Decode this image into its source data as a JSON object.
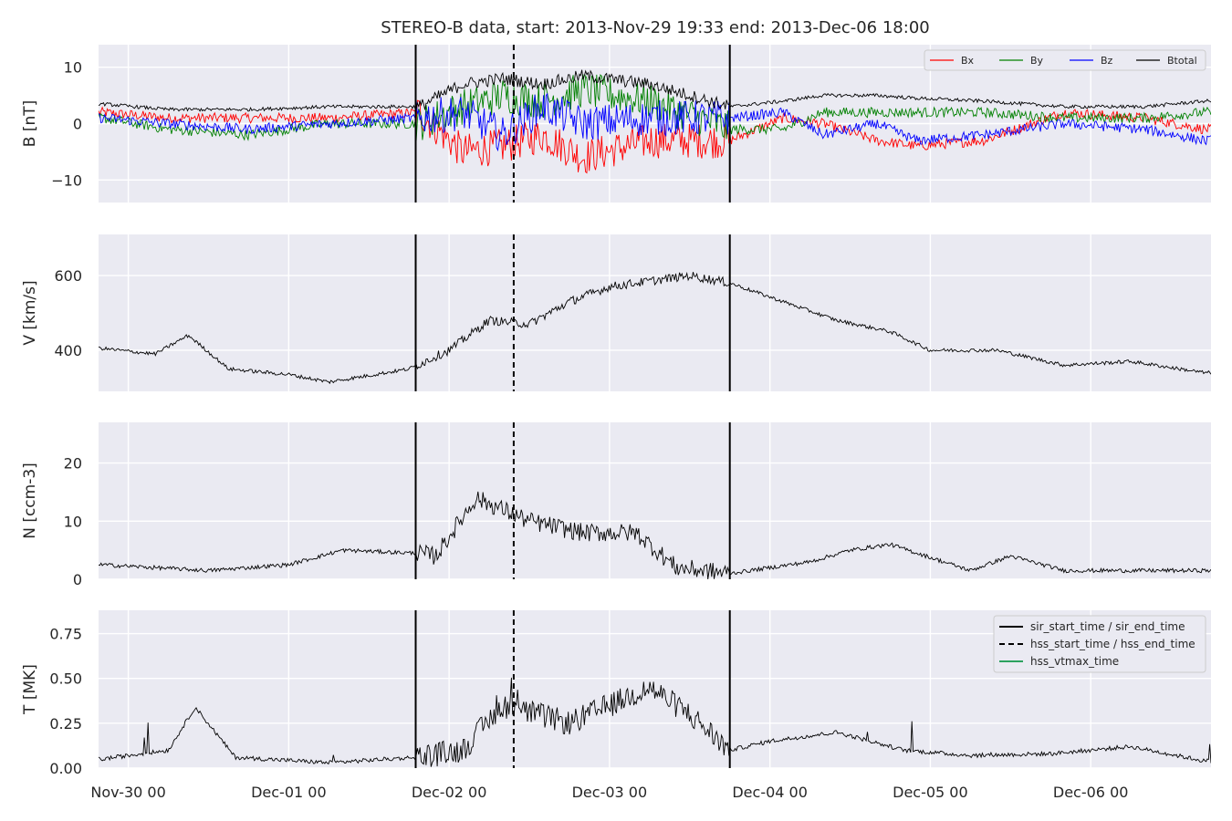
{
  "chart_data": {
    "type": "line",
    "title": "STEREO-B data, start: 2013-Nov-29 19:33  end: 2013-Dec-06 18:00",
    "x_range": [
      "2013-11-29 19:33",
      "2013-12-06 18:00"
    ],
    "x_ticks": [
      "Nov-30 00",
      "Dec-01 00",
      "Dec-02 00",
      "Dec-03 00",
      "Dec-04 00",
      "Dec-05 00",
      "Dec-06 00"
    ],
    "grid": true,
    "event_lines": [
      {
        "label": "sir_start_time / sir_end_time",
        "style": "solid",
        "color": "#000000",
        "times": [
          "2013-12-01 19:00",
          "2013-12-03 18:00"
        ]
      },
      {
        "label": "hss_start_time / hss_end_time",
        "style": "dashed",
        "color": "#000000",
        "times": [
          "2013-12-02 09:40"
        ]
      },
      {
        "label": "hss_vtmax_time",
        "style": "solid",
        "color": "#2ca25f",
        "times": []
      }
    ],
    "panels": [
      {
        "id": "B",
        "ylabel": "B [nT]",
        "ylim": [
          -14,
          14
        ],
        "yticks": [
          10,
          0,
          -10
        ],
        "legend": "top-right",
        "series": [
          {
            "name": "Bx",
            "color": "#ff0000",
            "x": [
              "2013-11-29 20:00",
              "2013-11-30 06:00",
              "2013-11-30 18:00",
              "2013-12-01 06:00",
              "2013-12-01 19:30",
              "2013-12-02 02:00",
              "2013-12-02 08:00",
              "2013-12-02 14:00",
              "2013-12-02 20:00",
              "2013-12-03 06:00",
              "2013-12-03 18:00",
              "2013-12-04 02:00",
              "2013-12-04 08:00",
              "2013-12-04 16:00",
              "2013-12-04 22:00",
              "2013-12-05 08:00",
              "2013-12-05 20:00",
              "2013-12-06 08:00",
              "2013-12-06 17:00"
            ],
            "y": [
              2,
              1,
              1,
              1,
              2,
              -5,
              -4,
              -2,
              -6,
              -3,
              -3,
              1,
              0,
              -3,
              -4,
              -3,
              2,
              1,
              -1
            ]
          },
          {
            "name": "By",
            "color": "#008000",
            "x": [
              "2013-11-29 20:00",
              "2013-11-30 06:00",
              "2013-11-30 18:00",
              "2013-12-01 06:00",
              "2013-12-01 19:30",
              "2013-12-02 02:00",
              "2013-12-02 08:00",
              "2013-12-02 14:00",
              "2013-12-02 20:00",
              "2013-12-03 06:00",
              "2013-12-03 18:00",
              "2013-12-04 02:00",
              "2013-12-04 08:00",
              "2013-12-04 16:00",
              "2013-12-04 22:00",
              "2013-12-05 08:00",
              "2013-12-05 20:00",
              "2013-12-06 08:00",
              "2013-12-06 17:00"
            ],
            "y": [
              1,
              -1,
              -2,
              0,
              0,
              3,
              5,
              4,
              6,
              4,
              -1,
              -1,
              2,
              2,
              2,
              2,
              1,
              1,
              2
            ]
          },
          {
            "name": "Bz",
            "color": "#0000ff",
            "x": [
              "2013-11-29 20:00",
              "2013-11-30 06:00",
              "2013-11-30 18:00",
              "2013-12-01 06:00",
              "2013-12-01 19:30",
              "2013-12-02 02:00",
              "2013-12-02 08:00",
              "2013-12-02 14:00",
              "2013-12-02 20:00",
              "2013-12-03 06:00",
              "2013-12-03 18:00",
              "2013-12-04 02:00",
              "2013-12-04 08:00",
              "2013-12-04 16:00",
              "2013-12-04 22:00",
              "2013-12-05 08:00",
              "2013-12-05 20:00",
              "2013-12-06 08:00",
              "2013-12-06 17:00"
            ],
            "y": [
              1,
              0,
              -1,
              0,
              1,
              2,
              -2,
              3,
              0,
              1,
              1,
              2,
              -2,
              0,
              -3,
              -2,
              0,
              -1,
              -3
            ]
          },
          {
            "name": "Btotal",
            "color": "#000000",
            "x": [
              "2013-11-29 20:00",
              "2013-11-30 06:00",
              "2013-11-30 18:00",
              "2013-12-01 06:00",
              "2013-12-01 19:30",
              "2013-12-02 02:00",
              "2013-12-02 08:00",
              "2013-12-02 14:00",
              "2013-12-02 20:00",
              "2013-12-03 06:00",
              "2013-12-03 18:00",
              "2013-12-04 02:00",
              "2013-12-04 08:00",
              "2013-12-04 16:00",
              "2013-12-04 22:00",
              "2013-12-05 08:00",
              "2013-12-05 20:00",
              "2013-12-06 08:00",
              "2013-12-06 17:00"
            ],
            "y": [
              3.5,
              2.5,
              2.5,
              3,
              3,
              7,
              8,
              7,
              8.5,
              7,
              3,
              4,
              5,
              5,
              4.5,
              4,
              3,
              3,
              4
            ]
          }
        ]
      },
      {
        "id": "V",
        "ylabel": "V [km/s]",
        "ylim": [
          290,
          710
        ],
        "yticks": [
          600,
          400
        ],
        "series": [
          {
            "name": "",
            "color": "#000000",
            "x": [
              "2013-11-29 20:00",
              "2013-11-30 04:00",
              "2013-11-30 09:00",
              "2013-11-30 15:00",
              "2013-12-01 00:00",
              "2013-12-01 06:00",
              "2013-12-01 18:00",
              "2013-12-02 00:00",
              "2013-12-02 06:00",
              "2013-12-02 12:00",
              "2013-12-02 18:00",
              "2013-12-03 00:00",
              "2013-12-03 12:00",
              "2013-12-03 18:00",
              "2013-12-04 02:00",
              "2013-12-04 10:00",
              "2013-12-04 18:00",
              "2013-12-05 00:00",
              "2013-12-05 10:00",
              "2013-12-05 20:00",
              "2013-12-06 06:00",
              "2013-12-06 17:00"
            ],
            "y": [
              405,
              390,
              440,
              350,
              335,
              315,
              350,
              400,
              480,
              470,
              530,
              570,
              600,
              580,
              530,
              480,
              450,
              400,
              400,
              360,
              370,
              340
            ]
          }
        ]
      },
      {
        "id": "N",
        "ylabel": "N [ccm-3]",
        "ylim": [
          0,
          27
        ],
        "yticks": [
          20,
          10,
          0
        ],
        "series": [
          {
            "name": "",
            "color": "#000000",
            "x": [
              "2013-11-29 20:00",
              "2013-11-30 12:00",
              "2013-12-01 00:00",
              "2013-12-01 08:00",
              "2013-12-01 19:00",
              "2013-12-01 22:00",
              "2013-12-02 04:00",
              "2013-12-02 08:00",
              "2013-12-02 12:00",
              "2013-12-02 20:00",
              "2013-12-03 04:00",
              "2013-12-03 10:00",
              "2013-12-03 18:00",
              "2013-12-04 06:00",
              "2013-12-04 12:00",
              "2013-12-04 18:00",
              "2013-12-05 06:00",
              "2013-12-05 12:00",
              "2013-12-05 20:00",
              "2013-12-06 08:00",
              "2013-12-06 17:00"
            ],
            "y": [
              2.5,
              1.5,
              2.5,
              5,
              4.5,
              4,
              14,
              12,
              10,
              8,
              8,
              2,
              1,
              3,
              5,
              6,
              1.5,
              4,
              1.5,
              1.5,
              1.5
            ]
          }
        ]
      },
      {
        "id": "T",
        "ylabel": "T [MK]",
        "ylim": [
          0,
          0.88
        ],
        "yticks": [
          0.75,
          0.5,
          0.25,
          0.0
        ],
        "legend": "top-right",
        "series": [
          {
            "name": "",
            "color": "#000000",
            "x": [
              "2013-11-29 20:00",
              "2013-11-30 06:00",
              "2013-11-30 10:00",
              "2013-11-30 16:00",
              "2013-12-01 06:00",
              "2013-12-01 19:00",
              "2013-12-02 02:00",
              "2013-12-02 08:00",
              "2013-12-02 18:00",
              "2013-12-03 06:00",
              "2013-12-03 12:00",
              "2013-12-03 18:00",
              "2013-12-04 00:00",
              "2013-12-04 10:00",
              "2013-12-04 20:00",
              "2013-12-05 06:00",
              "2013-12-05 18:00",
              "2013-12-06 06:00",
              "2013-12-06 17:00"
            ],
            "y": [
              0.05,
              0.1,
              0.34,
              0.06,
              0.03,
              0.06,
              0.1,
              0.35,
              0.25,
              0.45,
              0.3,
              0.1,
              0.15,
              0.2,
              0.1,
              0.07,
              0.08,
              0.12,
              0.04
            ]
          }
        ]
      }
    ]
  }
}
